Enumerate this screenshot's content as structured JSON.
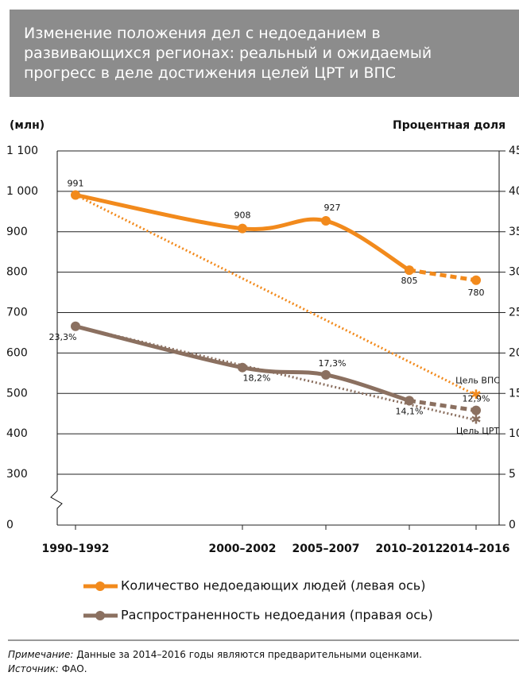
{
  "title_lines": [
    "Изменение положения дел с недоеданием в",
    "развивающихся регионах: реальный и ожидаемый",
    "прогресс в деле достижения целей ЦРТ и ВПС"
  ],
  "chart_data": {
    "type": "line",
    "ylabel": "(млн)",
    "y2label": "Процентная доля",
    "categories": [
      "1990–1992",
      "2000–2002",
      "2005–2007",
      "2010–2012",
      "2014–2016"
    ],
    "ylim": [
      300,
      1100
    ],
    "yticks": [
      {
        "value": 0,
        "label": "0"
      },
      300,
      400,
      500,
      600,
      700,
      800,
      900,
      {
        "value": 1000,
        "label": "1 000"
      },
      {
        "value": 1100,
        "label": "1 100"
      }
    ],
    "y2lim": [
      5,
      45
    ],
    "y2ticks": [
      0,
      5,
      10,
      15,
      20,
      25,
      30,
      35,
      40,
      45
    ],
    "series": [
      {
        "name": "Количество недоедающих людей (левая ось)",
        "color": "#f28a1c",
        "values": [
          991,
          908,
          927,
          805,
          780
        ],
        "value_labels": [
          "991",
          "908",
          "927",
          "805",
          "780"
        ],
        "target": 495.5,
        "target_label": "Цель ВПС"
      },
      {
        "name": "Распространенность недоедания (правая ось)",
        "color": "#8b7060",
        "axis": "y2",
        "values": [
          23.3,
          18.2,
          17.3,
          14.1,
          12.9
        ],
        "value_labels": [
          "23,3%",
          "18,2%",
          "17,3%",
          "14,1%",
          "12,9%"
        ],
        "target": 11.7,
        "target_label": "Цель ЦРТ"
      }
    ]
  },
  "notes": {
    "note_label": "Примечание:",
    "note_text": " Данные за 2014–2016 годы являются предварительными оценками.",
    "source_label": "Источник:",
    "source_text": " ФАО."
  }
}
